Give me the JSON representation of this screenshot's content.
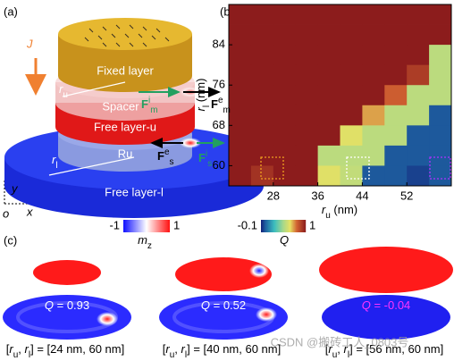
{
  "panel_labels": {
    "a": "(a)",
    "b": "(b)",
    "c": "(c)"
  },
  "diagram": {
    "current": "J",
    "fixed": "Fixed layer",
    "spacer": "Spacer",
    "free_u": "Free layer-u",
    "ru": "Ru",
    "free_l": "Free layer-l",
    "r_u": [
      {
        "t": "r",
        "f": "i"
      },
      {
        "t": "u",
        "f": "sub"
      }
    ],
    "r_l": [
      {
        "t": "r",
        "f": "i"
      },
      {
        "t": "l",
        "f": "sub"
      }
    ],
    "forces": [
      [
        {
          "t": "F",
          "f": "b"
        },
        {
          "t": "e",
          "f": "sup"
        },
        {
          "t": "m",
          "f": "sub"
        }
      ],
      [
        {
          "t": "F",
          "f": "b"
        },
        {
          "t": "i",
          "f": "sup"
        },
        {
          "t": "m",
          "f": "sub"
        }
      ],
      [
        {
          "t": "F",
          "f": "b"
        },
        {
          "t": "e",
          "f": "sup"
        },
        {
          "t": "s",
          "f": "sub"
        }
      ],
      [
        {
          "t": "F",
          "f": "b"
        },
        {
          "t": "i",
          "f": "sup"
        },
        {
          "t": "s",
          "f": "sub"
        }
      ]
    ],
    "axes": {
      "y": "y",
      "x": "x",
      "o": "o"
    }
  },
  "chart_data": {
    "type": "heatmap",
    "xlabel": [
      {
        "t": "r",
        "f": "i"
      },
      {
        "t": "u",
        "f": "sub"
      },
      {
        "t": " (nm)"
      }
    ],
    "ylabel": [
      {
        "t": "r",
        "f": "i"
      },
      {
        "t": "l",
        "f": "sub"
      },
      {
        "t": " (nm)"
      }
    ],
    "x": [
      22,
      26,
      30,
      34,
      38,
      42,
      46,
      50,
      54,
      58
    ],
    "y": [
      90,
      86,
      82,
      78,
      74,
      70,
      66,
      62,
      58
    ],
    "values": [
      [
        1,
        1,
        1,
        1,
        1,
        1,
        1,
        1,
        1,
        1
      ],
      [
        1,
        1,
        1,
        1,
        1,
        1,
        1,
        1,
        1,
        1
      ],
      [
        1,
        1,
        1,
        1,
        1,
        1,
        1,
        1,
        1,
        0.5
      ],
      [
        1,
        1,
        1,
        1,
        1,
        1,
        1,
        1,
        0.9,
        0.5
      ],
      [
        1,
        1,
        1,
        1,
        1,
        1,
        1,
        0.8,
        0.5,
        0.5
      ],
      [
        1,
        1,
        1,
        1,
        1,
        1,
        0.7,
        0.5,
        0.5,
        0
      ],
      [
        1,
        1,
        1,
        1,
        1,
        0.6,
        0.5,
        0.5,
        0,
        0
      ],
      [
        1,
        1,
        1,
        1,
        0.5,
        0.5,
        0.5,
        0,
        0,
        0
      ],
      [
        1,
        0.93,
        1,
        1,
        0.6,
        0.52,
        0,
        0,
        -0.04,
        0
      ]
    ],
    "xlim": [
      20,
      60
    ],
    "ylim": [
      56,
      92
    ],
    "xticks": [
      28,
      36,
      44,
      52
    ],
    "yticks": [
      60,
      68,
      76,
      84
    ],
    "clim": [
      -0.1,
      1
    ],
    "clabel": [
      {
        "t": "Q",
        "f": "i"
      }
    ]
  },
  "mz_colorbar": {
    "clim": [
      -1,
      1
    ],
    "label": [
      {
        "t": "m",
        "f": "i"
      },
      {
        "t": "z",
        "f": "sub"
      }
    ]
  },
  "cases": [
    {
      "q": [
        {
          "t": "Q",
          "f": "i"
        },
        {
          "t": " = 0.93"
        }
      ],
      "q_color": "#ffffff",
      "caption": [
        {
          "t": "["
        },
        {
          "t": "r",
          "f": "i"
        },
        {
          "t": "u",
          "f": "sub"
        },
        {
          "t": ", "
        },
        {
          "t": "r",
          "f": "i"
        },
        {
          "t": "l",
          "f": "sub"
        },
        {
          "t": "] = [24 nm, 60 nm]"
        }
      ]
    },
    {
      "q": [
        {
          "t": "Q",
          "f": "i"
        },
        {
          "t": " = 0.52"
        }
      ],
      "q_color": "#ffffff",
      "caption": [
        {
          "t": "["
        },
        {
          "t": "r",
          "f": "i"
        },
        {
          "t": "u",
          "f": "sub"
        },
        {
          "t": ", "
        },
        {
          "t": "r",
          "f": "i"
        },
        {
          "t": "l",
          "f": "sub"
        },
        {
          "t": "] = [40 nm, 60 nm]"
        }
      ]
    },
    {
      "q": [
        {
          "t": "Q",
          "f": "i"
        },
        {
          "t": " = -0.04"
        }
      ],
      "q_color": "#ff33ff",
      "caption": [
        {
          "t": "["
        },
        {
          "t": "r",
          "f": "i"
        },
        {
          "t": "u",
          "f": "sub"
        },
        {
          "t": ", "
        },
        {
          "t": "r",
          "f": "i"
        },
        {
          "t": "l",
          "f": "sub"
        },
        {
          "t": "] = [56 nm, 60 nm]"
        }
      ]
    }
  ],
  "watermark": "CSDN @搬砖工人_0803号"
}
